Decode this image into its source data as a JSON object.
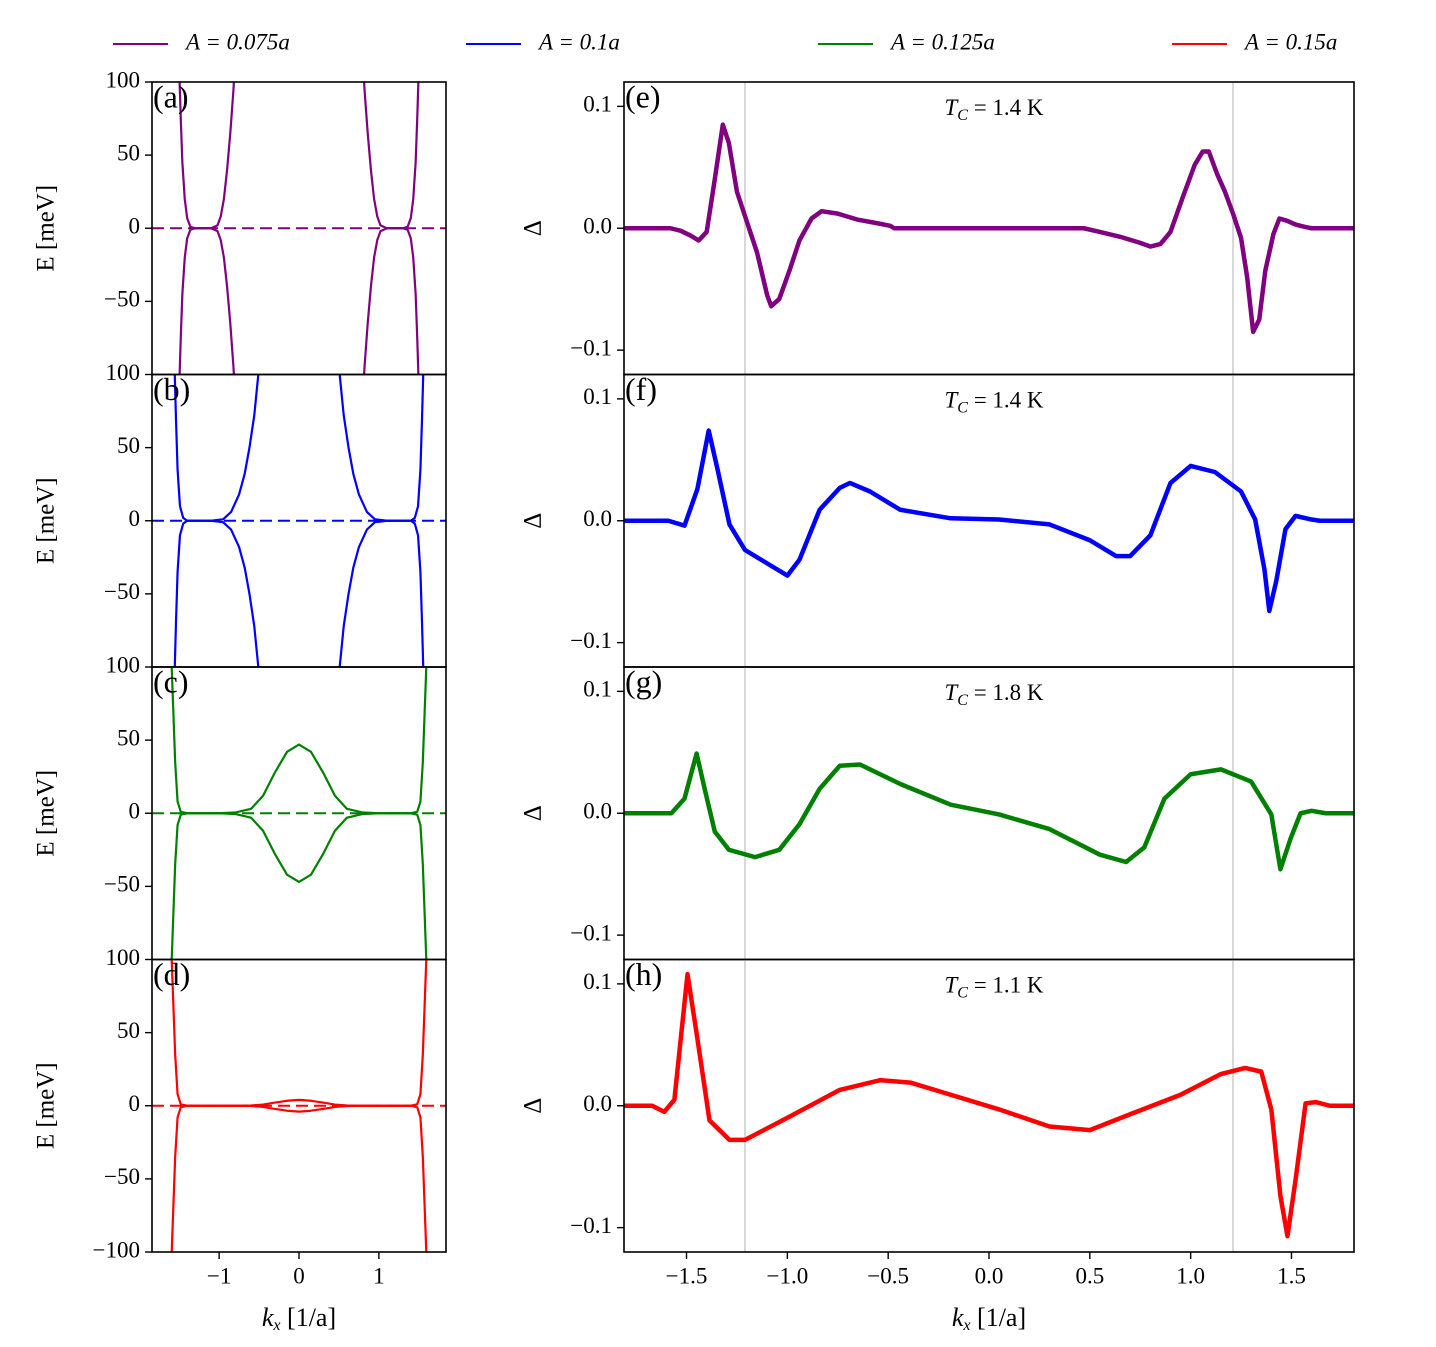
{
  "legend": [
    {
      "name": "A = 0.075a",
      "color": "#800080"
    },
    {
      "name": "A = 0.1a",
      "color": "#0000ff"
    },
    {
      "name": "A = 0.125a",
      "color": "#008000"
    },
    {
      "name": "A = 0.15a",
      "color": "#ff0000"
    }
  ],
  "chart_data": [
    {
      "type": "line",
      "panel_label": "(a)",
      "ylabel": "E [meV]",
      "xlim": [
        -1.84,
        1.84
      ],
      "ylim": [
        -100,
        100
      ],
      "hline": 0,
      "yticks": [
        {
          "value": -50,
          "label": "−50"
        },
        0,
        50,
        100
      ],
      "series": [
        {
          "color": "#800080",
          "x": [
            -1.5,
            -1.48,
            -1.46,
            -1.43,
            -1.4,
            -1.36,
            -1.3,
            -1.2,
            -1.1,
            -1.02,
            -0.98,
            -0.94,
            -0.9,
            -0.86,
            -0.82,
            -0.8
          ],
          "values": [
            110,
            75,
            45,
            20,
            7,
            1,
            0,
            0,
            0,
            2,
            8,
            20,
            40,
            65,
            95,
            115
          ]
        },
        {
          "color": "#800080",
          "x": [
            0.8,
            0.82,
            0.86,
            0.9,
            0.94,
            0.98,
            1.02,
            1.1,
            1.2,
            1.3,
            1.36,
            1.4,
            1.43,
            1.46,
            1.48,
            1.5
          ],
          "values": [
            115,
            95,
            65,
            40,
            20,
            8,
            2,
            0,
            0,
            0,
            1,
            7,
            20,
            45,
            75,
            110
          ]
        },
        {
          "color": "#800080",
          "x": [
            -1.5,
            -1.48,
            -1.46,
            -1.43,
            -1.4,
            -1.36,
            -1.3,
            -1.2,
            -1.1,
            -1.02,
            -0.98,
            -0.94,
            -0.9,
            -0.86,
            -0.82,
            -0.8
          ],
          "values": [
            -110,
            -75,
            -45,
            -20,
            -7,
            -1,
            0,
            0,
            0,
            -2,
            -8,
            -20,
            -40,
            -65,
            -95,
            -115
          ]
        },
        {
          "color": "#800080",
          "x": [
            0.8,
            0.82,
            0.86,
            0.9,
            0.94,
            0.98,
            1.02,
            1.1,
            1.2,
            1.3,
            1.36,
            1.4,
            1.43,
            1.46,
            1.48,
            1.5
          ],
          "values": [
            -115,
            -95,
            -65,
            -40,
            -20,
            -8,
            -2,
            0,
            0,
            0,
            -1,
            -7,
            -20,
            -45,
            -75,
            -110
          ]
        }
      ]
    },
    {
      "type": "line",
      "panel_label": "(b)",
      "ylabel": "E [meV]",
      "xlim": [
        -1.84,
        1.84
      ],
      "ylim": [
        -100,
        100
      ],
      "hline": 0,
      "yticks": [
        {
          "value": -50,
          "label": "−50"
        },
        0,
        50,
        100
      ],
      "series": [
        {
          "color": "#0000ff",
          "x": [
            -1.56,
            -1.54,
            -1.52,
            -1.49,
            -1.45,
            -1.4,
            -1.3,
            -1.1,
            -0.95,
            -0.85,
            -0.75,
            -0.68,
            -0.62,
            -0.56,
            -0.5
          ],
          "values": [
            110,
            70,
            35,
            10,
            2,
            0,
            0,
            0,
            1,
            6,
            18,
            32,
            50,
            72,
            105
          ]
        },
        {
          "color": "#0000ff",
          "x": [
            0.5,
            0.56,
            0.62,
            0.68,
            0.75,
            0.85,
            0.95,
            1.1,
            1.3,
            1.4,
            1.45,
            1.49,
            1.52,
            1.54,
            1.56
          ],
          "values": [
            105,
            72,
            50,
            32,
            18,
            6,
            1,
            0,
            0,
            0,
            2,
            10,
            35,
            70,
            110
          ]
        },
        {
          "color": "#0000ff",
          "x": [
            -1.56,
            -1.54,
            -1.52,
            -1.49,
            -1.45,
            -1.4,
            -1.3,
            -1.1,
            -0.95,
            -0.85,
            -0.75,
            -0.68,
            -0.62,
            -0.56,
            -0.5
          ],
          "values": [
            -110,
            -70,
            -35,
            -10,
            -2,
            0,
            0,
            0,
            -1,
            -6,
            -18,
            -32,
            -50,
            -72,
            -105
          ]
        },
        {
          "color": "#0000ff",
          "x": [
            0.5,
            0.56,
            0.62,
            0.68,
            0.75,
            0.85,
            0.95,
            1.1,
            1.3,
            1.4,
            1.45,
            1.49,
            1.52,
            1.54,
            1.56
          ],
          "values": [
            -105,
            -72,
            -50,
            -32,
            -18,
            -6,
            -1,
            0,
            0,
            0,
            -2,
            -10,
            -35,
            -70,
            -110
          ]
        }
      ]
    },
    {
      "type": "line",
      "panel_label": "(c)",
      "ylabel": "E [meV]",
      "xlim": [
        -1.84,
        1.84
      ],
      "ylim": [
        -100,
        100
      ],
      "hline": 0,
      "yticks": [
        {
          "value": -50,
          "label": "−50"
        },
        0,
        50,
        100
      ],
      "series": [
        {
          "color": "#008000",
          "x": [
            -1.6,
            -1.58,
            -1.55,
            -1.52,
            -1.48,
            -1.4,
            -1.2,
            -1.0,
            -0.8,
            -0.6,
            -0.45,
            -0.3,
            -0.15,
            0,
            0.15,
            0.3,
            0.45,
            0.6,
            0.8,
            1.0,
            1.2,
            1.4,
            1.48,
            1.52,
            1.55,
            1.58,
            1.6
          ],
          "values": [
            110,
            80,
            35,
            8,
            1,
            0,
            0,
            0,
            0.5,
            3,
            12,
            28,
            42,
            47,
            42,
            28,
            12,
            3,
            0.5,
            0,
            0,
            0,
            1,
            8,
            35,
            80,
            110
          ]
        },
        {
          "color": "#008000",
          "x": [
            -1.6,
            -1.58,
            -1.55,
            -1.52,
            -1.48,
            -1.4,
            -1.2,
            -1.0,
            -0.8,
            -0.6,
            -0.45,
            -0.3,
            -0.15,
            0,
            0.15,
            0.3,
            0.45,
            0.6,
            0.8,
            1.0,
            1.2,
            1.4,
            1.48,
            1.52,
            1.55,
            1.58,
            1.6
          ],
          "values": [
            -110,
            -80,
            -35,
            -8,
            -1,
            0,
            0,
            0,
            -0.5,
            -3,
            -12,
            -28,
            -42,
            -47,
            -42,
            -28,
            -12,
            -3,
            -0.5,
            0,
            0,
            0,
            -1,
            -8,
            -35,
            -80,
            -110
          ]
        }
      ]
    },
    {
      "type": "line",
      "panel_label": "(d)",
      "ylabel": "E [meV]",
      "xlabel": {
        "main": "k",
        "sub": "x",
        "rest": " [1/a]"
      },
      "xlim": [
        -1.84,
        1.84
      ],
      "ylim": [
        -100,
        100
      ],
      "hline": 0,
      "xticks": [
        {
          "value": -1,
          "label": "−1"
        },
        0,
        1
      ],
      "yticks": [
        {
          "value": -100,
          "label": "−100"
        },
        {
          "value": -50,
          "label": "−50"
        },
        0,
        50,
        100
      ],
      "series": [
        {
          "color": "#ff0000",
          "x": [
            -1.6,
            -1.58,
            -1.55,
            -1.52,
            -1.48,
            -1.4,
            -1.2,
            -1.0,
            -0.8,
            -0.6,
            -0.45,
            -0.3,
            -0.15,
            0,
            0.15,
            0.3,
            0.45,
            0.6,
            0.8,
            1.0,
            1.2,
            1.4,
            1.48,
            1.52,
            1.55,
            1.58,
            1.6
          ],
          "values": [
            110,
            80,
            35,
            8,
            1,
            0,
            0,
            0,
            0,
            0.2,
            0.8,
            2.2,
            3.4,
            4,
            3.4,
            2.2,
            0.8,
            0.2,
            0,
            0,
            0,
            0,
            1,
            8,
            35,
            80,
            110
          ]
        },
        {
          "color": "#ff0000",
          "x": [
            -1.6,
            -1.58,
            -1.55,
            -1.52,
            -1.48,
            -1.4,
            -1.2,
            -1.0,
            -0.8,
            -0.6,
            -0.45,
            -0.3,
            -0.15,
            0,
            0.15,
            0.3,
            0.45,
            0.6,
            0.8,
            1.0,
            1.2,
            1.4,
            1.48,
            1.52,
            1.55,
            1.58,
            1.6
          ],
          "values": [
            -110,
            -80,
            -35,
            -8,
            -1,
            0,
            0,
            0,
            0,
            -0.2,
            -0.8,
            -2.2,
            -3.4,
            -4,
            -3.4,
            -2.2,
            -0.8,
            -0.2,
            0,
            0,
            0,
            0,
            -1,
            -8,
            -35,
            -80,
            -110
          ]
        }
      ]
    },
    {
      "type": "line",
      "panel_label": "(e)",
      "ylabel": "Δ",
      "annotation": {
        "main": "T",
        "sub": "C",
        "rest": " = 1.4 K"
      },
      "xlim": [
        -1.81,
        1.81
      ],
      "ylim": [
        -0.12,
        0.12
      ],
      "vlines": [
        -1.21,
        1.21
      ],
      "yticks": [
        {
          "value": -0.1,
          "label": "−0.1"
        },
        {
          "value": 0,
          "label": "0.0"
        },
        0.1
      ],
      "series": [
        {
          "color": "#800080",
          "x": [
            -1.81,
            -1.58,
            -1.53,
            -1.48,
            -1.44,
            -1.4,
            -1.36,
            -1.32,
            -1.29,
            -1.25,
            -1.21,
            -1.15,
            -1.1,
            -1.08,
            -1.04,
            -0.99,
            -0.94,
            -0.88,
            -0.83,
            -0.75,
            -0.65,
            -0.55,
            -0.49,
            -0.47,
            0.47,
            0.55,
            0.65,
            0.75,
            0.8,
            0.85,
            0.9,
            0.96,
            1.02,
            1.06,
            1.09,
            1.13,
            1.17,
            1.21,
            1.25,
            1.28,
            1.31,
            1.34,
            1.37,
            1.41,
            1.44,
            1.48,
            1.52,
            1.57,
            1.6,
            1.81
          ],
          "values": [
            0,
            0,
            -0.002,
            -0.006,
            -0.01,
            -0.003,
            0.04,
            0.085,
            0.07,
            0.03,
            0.01,
            -0.02,
            -0.055,
            -0.064,
            -0.058,
            -0.035,
            -0.01,
            0.008,
            0.014,
            0.012,
            0.007,
            0.004,
            0.002,
            0,
            0,
            -0.003,
            -0.007,
            -0.012,
            -0.015,
            -0.013,
            -0.003,
            0.025,
            0.052,
            0.063,
            0.063,
            0.045,
            0.03,
            0.012,
            -0.008,
            -0.04,
            -0.085,
            -0.075,
            -0.035,
            -0.005,
            0.008,
            0.006,
            0.003,
            0.001,
            0,
            0
          ]
        }
      ]
    },
    {
      "type": "line",
      "panel_label": "(f)",
      "ylabel": "Δ",
      "annotation": {
        "main": "T",
        "sub": "C",
        "rest": " = 1.4 K"
      },
      "xlim": [
        -1.81,
        1.81
      ],
      "ylim": [
        -0.12,
        0.12
      ],
      "vlines": [
        -1.21,
        1.21
      ],
      "yticks": [
        {
          "value": -0.1,
          "label": "−0.1"
        },
        {
          "value": 0,
          "label": "0.0"
        },
        0.1
      ],
      "series": [
        {
          "color": "#0000ff",
          "x": [
            -1.81,
            -1.59,
            -1.51,
            -1.446,
            -1.39,
            -1.346,
            -1.287,
            -1.21,
            -1.09,
            -1.0,
            -0.94,
            -0.84,
            -0.74,
            -0.69,
            -0.59,
            -0.44,
            -0.19,
            0.05,
            0.3,
            0.5,
            0.63,
            0.7,
            0.8,
            0.9,
            1.0,
            1.12,
            1.25,
            1.32,
            1.366,
            1.39,
            1.425,
            1.47,
            1.52,
            1.6,
            1.64,
            1.81
          ],
          "values": [
            0,
            0,
            -0.004,
            0.026,
            0.074,
            0.042,
            -0.003,
            -0.024,
            -0.036,
            -0.045,
            -0.032,
            0.009,
            0.027,
            0.031,
            0.024,
            0.009,
            0.002,
            0.001,
            -0.003,
            -0.016,
            -0.029,
            -0.029,
            -0.012,
            0.031,
            0.045,
            0.04,
            0.024,
            0.001,
            -0.04,
            -0.074,
            -0.049,
            -0.007,
            0.004,
            0.001,
            0,
            0
          ]
        }
      ]
    },
    {
      "type": "line",
      "panel_label": "(g)",
      "ylabel": "Δ",
      "annotation": {
        "main": "T",
        "sub": "C",
        "rest": " = 1.8 K"
      },
      "xlim": [
        -1.81,
        1.81
      ],
      "ylim": [
        -0.12,
        0.12
      ],
      "vlines": [
        -1.21,
        1.21
      ],
      "yticks": [
        {
          "value": -0.1,
          "label": "−0.1"
        },
        {
          "value": 0,
          "label": "0.0"
        },
        0.1
      ],
      "series": [
        {
          "color": "#008000",
          "x": [
            -1.81,
            -1.66,
            -1.575,
            -1.51,
            -1.45,
            -1.41,
            -1.36,
            -1.29,
            -1.16,
            -1.04,
            -0.94,
            -0.84,
            -0.74,
            -0.64,
            -0.44,
            -0.19,
            0.05,
            0.3,
            0.55,
            0.68,
            0.77,
            0.87,
            1.0,
            1.15,
            1.3,
            1.4,
            1.445,
            1.495,
            1.545,
            1.6,
            1.67,
            1.81
          ],
          "values": [
            0,
            0,
            0,
            0.012,
            0.049,
            0.02,
            -0.015,
            -0.03,
            -0.036,
            -0.03,
            -0.009,
            0.02,
            0.039,
            0.04,
            0.024,
            0.007,
            -0.001,
            -0.013,
            -0.034,
            -0.04,
            -0.028,
            0.012,
            0.032,
            0.036,
            0.026,
            -0.001,
            -0.046,
            -0.021,
            0,
            0.002,
            0,
            0
          ]
        }
      ]
    },
    {
      "type": "line",
      "panel_label": "(h)",
      "ylabel": "Δ",
      "annotation": {
        "main": "T",
        "sub": "C",
        "rest": " = 1.1 K"
      },
      "xlabel": {
        "main": "k",
        "sub": "x",
        "rest": " [1/a]"
      },
      "xlim": [
        -1.81,
        1.81
      ],
      "ylim": [
        -0.12,
        0.12
      ],
      "vlines": [
        -1.21,
        1.21
      ],
      "xticks": [
        {
          "value": -1.5,
          "label": "−1.5"
        },
        {
          "value": -1,
          "label": "−1.0"
        },
        {
          "value": -0.5,
          "label": "−0.5"
        },
        {
          "value": 0,
          "label": "0.0"
        },
        0.5,
        {
          "value": 1,
          "label": "1.0"
        },
        1.5
      ],
      "yticks": [
        {
          "value": -0.1,
          "label": "−0.1"
        },
        {
          "value": 0,
          "label": "0.0"
        },
        0.1
      ],
      "series": [
        {
          "color": "#ff0000",
          "x": [
            -1.81,
            -1.67,
            -1.61,
            -1.56,
            -1.495,
            -1.446,
            -1.386,
            -1.287,
            -1.21,
            -0.99,
            -0.74,
            -0.54,
            -0.39,
            -0.19,
            0.05,
            0.3,
            0.5,
            0.7,
            0.95,
            1.15,
            1.27,
            1.35,
            1.4,
            1.445,
            1.48,
            1.52,
            1.57,
            1.62,
            1.69,
            1.81
          ],
          "values": [
            0,
            0,
            -0.005,
            0.005,
            0.108,
            0.055,
            -0.012,
            -0.028,
            -0.028,
            -0.009,
            0.013,
            0.021,
            0.019,
            0.009,
            -0.003,
            -0.017,
            -0.02,
            -0.007,
            0.009,
            0.026,
            0.031,
            0.028,
            -0.003,
            -0.074,
            -0.107,
            -0.061,
            0.002,
            0.003,
            0,
            0
          ]
        }
      ]
    }
  ]
}
